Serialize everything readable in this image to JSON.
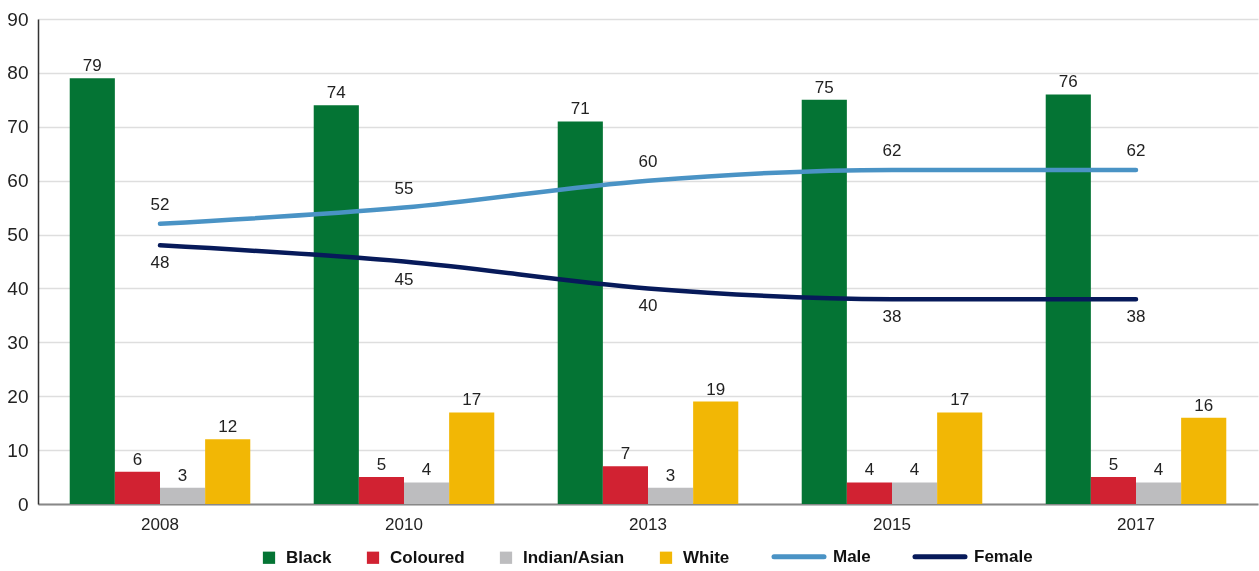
{
  "chart_data": {
    "type": "bar",
    "categories": [
      "2008",
      "2010",
      "2013",
      "2015",
      "2017"
    ],
    "series": [
      {
        "name": "Black",
        "color": "#047434",
        "values": [
          79,
          74,
          71,
          75,
          76
        ]
      },
      {
        "name": "Coloured",
        "color": "#d12232",
        "values": [
          6,
          5,
          7,
          4,
          5
        ]
      },
      {
        "name": "Indian/Asian",
        "color": "#bdbdbf",
        "values": [
          3,
          4,
          3,
          4,
          4
        ]
      },
      {
        "name": "White",
        "color": "#f2b705",
        "values": [
          12,
          17,
          19,
          17,
          16
        ]
      },
      {
        "name": "Male",
        "type": "line",
        "color": "#4a93c5",
        "values": [
          52,
          55,
          60,
          62,
          62
        ]
      },
      {
        "name": "Female",
        "type": "line",
        "color": "#071a5a",
        "values": [
          48,
          45,
          40,
          38,
          38
        ]
      }
    ],
    "ylim": [
      0,
      90
    ],
    "yticks": [
      0,
      10,
      20,
      30,
      40,
      50,
      60,
      70,
      80,
      90
    ],
    "grid": "y",
    "legend": "bottom",
    "data_labels": true
  }
}
